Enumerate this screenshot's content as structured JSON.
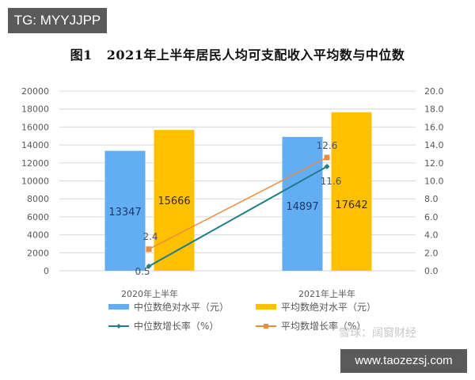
{
  "badge": {
    "text": "TG: MYYJJPP"
  },
  "title": {
    "fig": "图1",
    "text": "2021年上半年居民人均可支配收入平均数与中位数"
  },
  "watermark": {
    "text": "雪球：阔窗财经"
  },
  "site": {
    "text": "www.taozezsj.com"
  },
  "colors": {
    "median_bar": "#63aef2",
    "mean_bar": "#ffc000",
    "median_line": "#1f7d8c",
    "mean_line": "#ed8b3f",
    "grid": "#d9d9d9"
  },
  "chart_data": {
    "type": "bar+line",
    "title": "图1 2021年上半年居民人均可支配收入平均数与中位数",
    "categories": [
      "2020年上半年",
      "2021年上半年"
    ],
    "left_axis": {
      "min": 0,
      "max": 20000,
      "step": 2000,
      "ticks": [
        "0",
        "2000",
        "4000",
        "6000",
        "8000",
        "10000",
        "12000",
        "14000",
        "16000",
        "18000",
        "20000"
      ]
    },
    "right_axis": {
      "min": 0,
      "max": 20,
      "step": 2,
      "ticks": [
        "0.0",
        "2.0",
        "4.0",
        "6.0",
        "8.0",
        "10.0",
        "12.0",
        "14.0",
        "16.0",
        "18.0",
        "20.0"
      ]
    },
    "grid": true,
    "legend_position": "bottom",
    "series": [
      {
        "name": "中位数绝对水平（元）",
        "type": "bar",
        "axis": "left",
        "values": [
          13347,
          14897
        ],
        "labels": [
          "13347",
          "14897"
        ]
      },
      {
        "name": "平均数绝对水平（元）",
        "type": "bar",
        "axis": "left",
        "values": [
          15666,
          17642
        ],
        "labels": [
          "15666",
          "17642"
        ]
      },
      {
        "name": "中位数增长率（%）",
        "type": "line",
        "axis": "right",
        "values": [
          0.5,
          11.6
        ],
        "labels": [
          "0.5",
          "11.6"
        ]
      },
      {
        "name": "平均数增长率（%）",
        "type": "line",
        "axis": "right",
        "values": [
          2.4,
          12.6
        ],
        "labels": [
          "2.4",
          "12.6"
        ]
      }
    ]
  }
}
